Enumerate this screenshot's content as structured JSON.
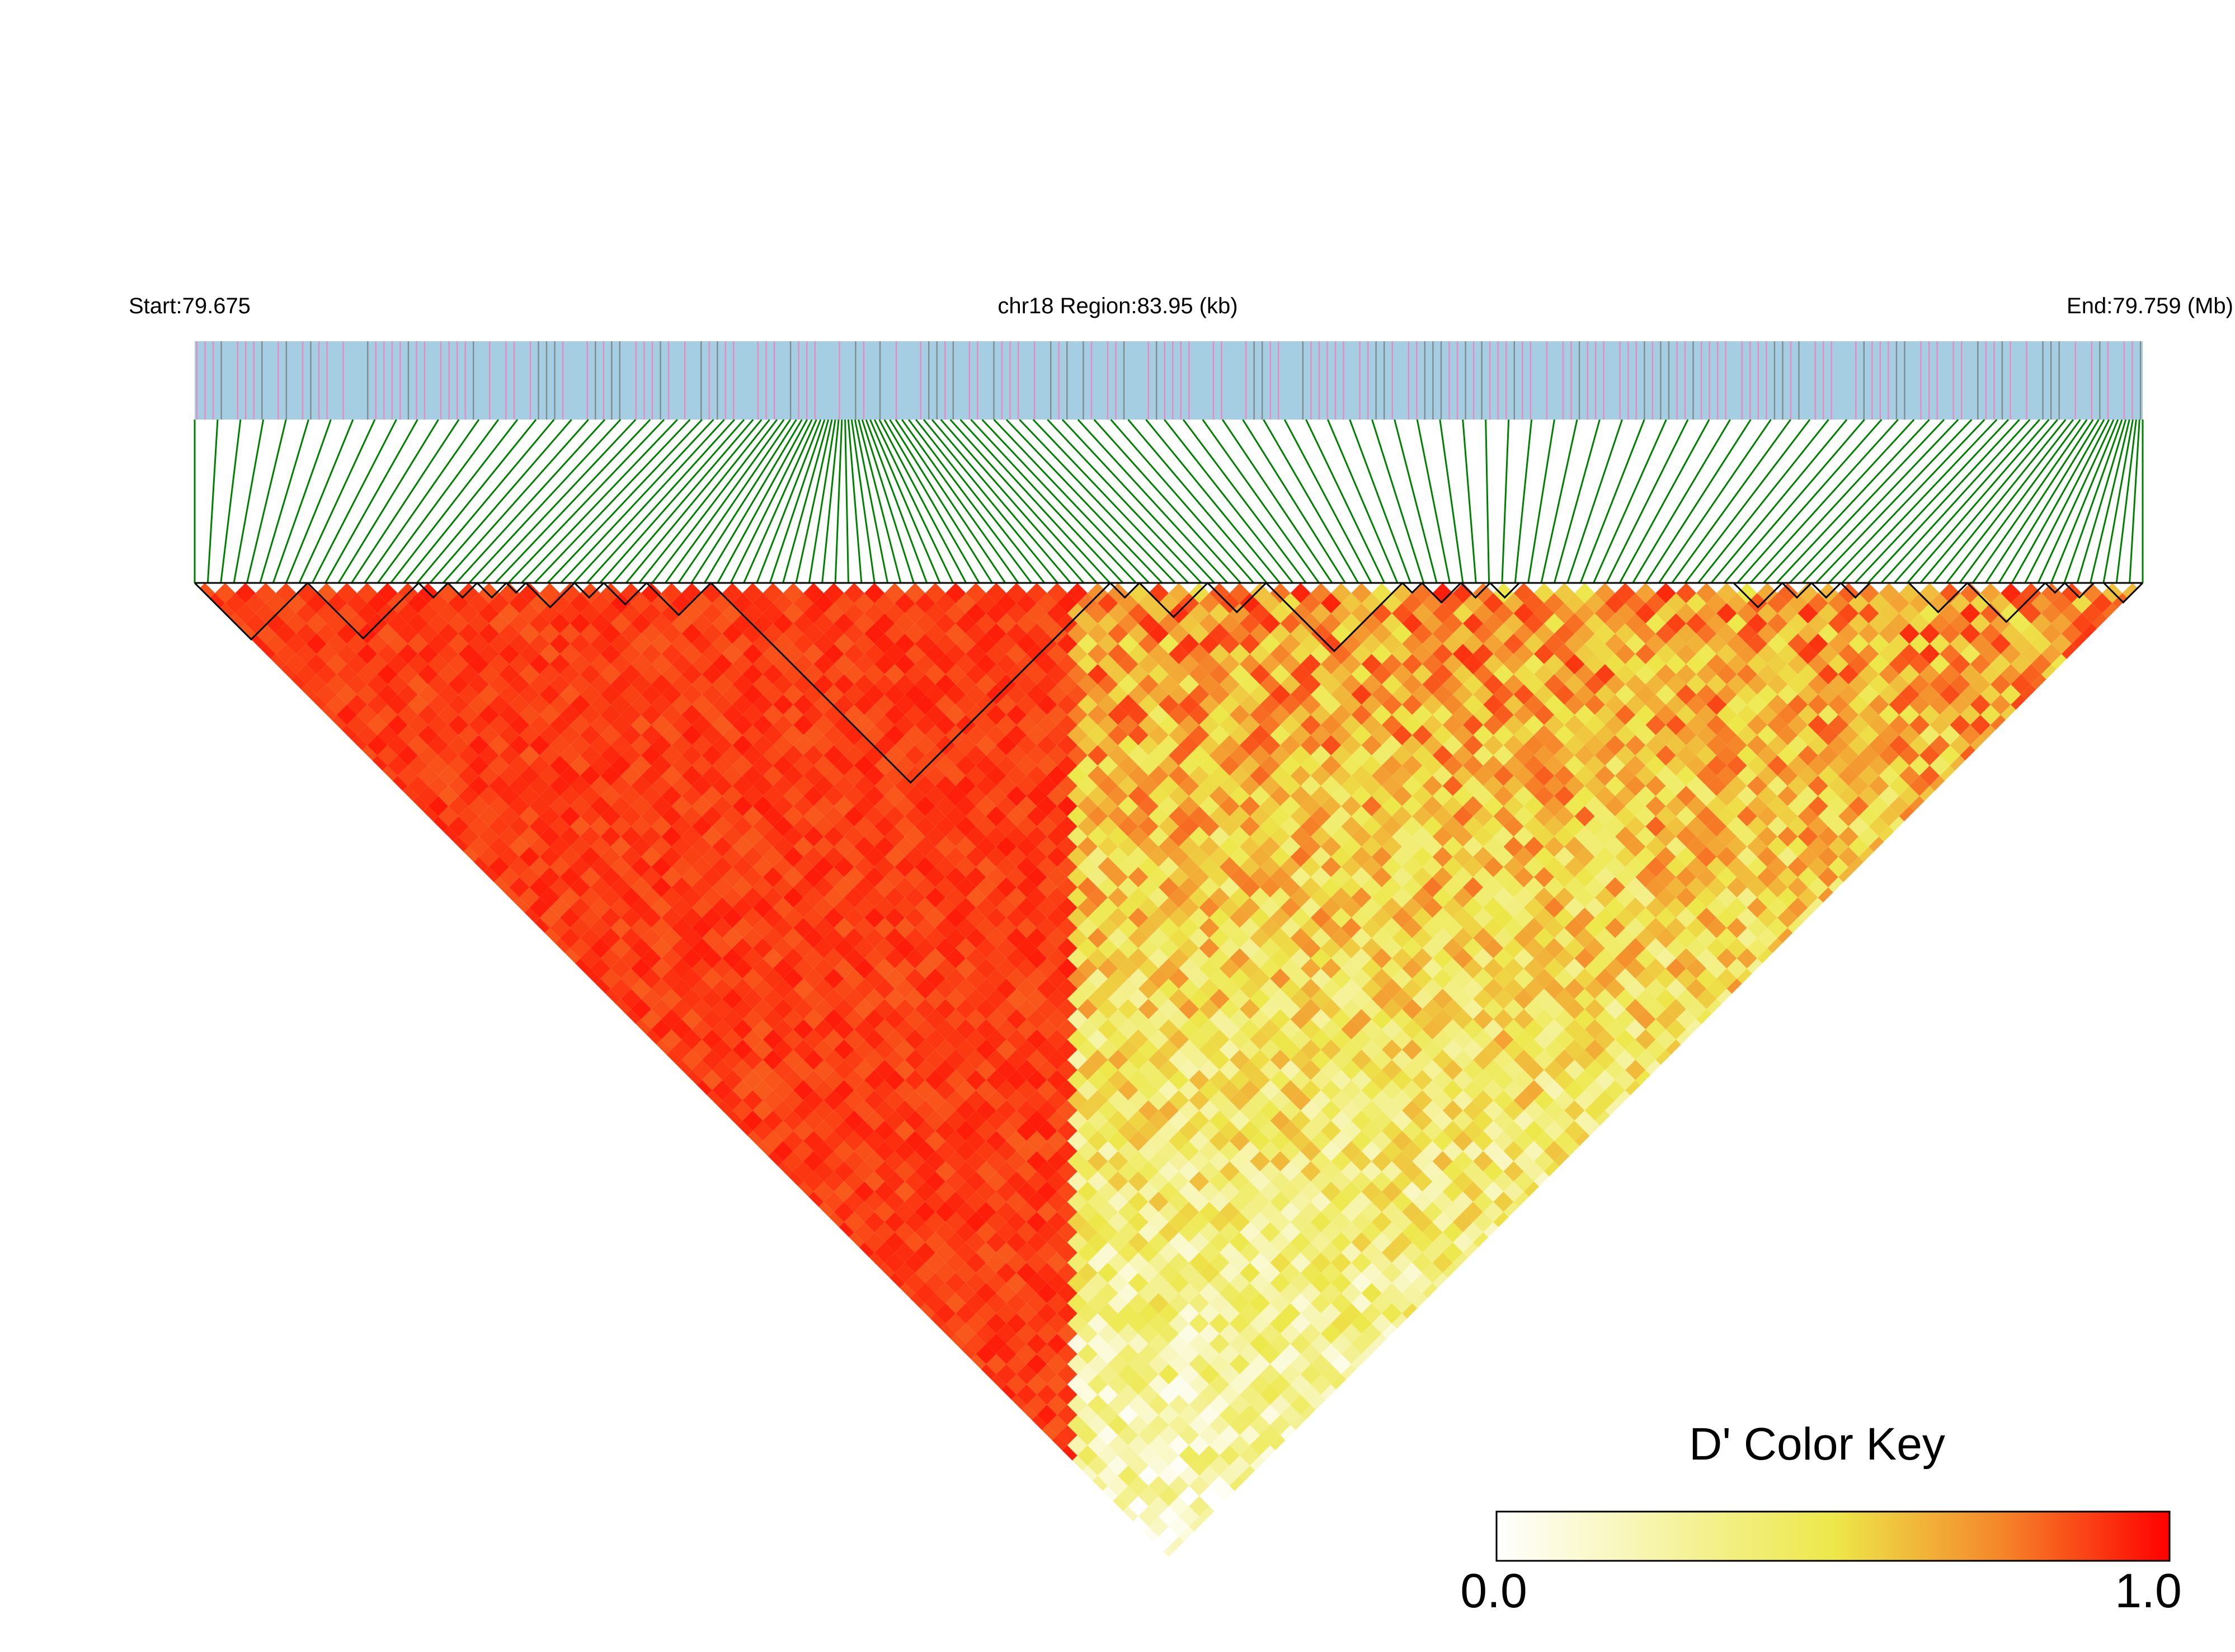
{
  "chart_data": {
    "type": "heatmap",
    "subtype": "linkage-disequilibrium-triangle",
    "title": "",
    "start_label": "Start:79.675",
    "region_label": "chr18 Region:83.95 (kb)",
    "end_label": "End:79.759 (Mb)",
    "chromosome": "chr18",
    "region_start_mb": 79.675,
    "region_end_mb": 79.759,
    "region_size_kb": 83.95,
    "snp_track_colors": {
      "background": "#a6cee3",
      "marker_pink": "#e78ac3",
      "marker_gray": "#7f8c8d"
    },
    "connector_color": "#008000",
    "block_outline_color": "#000000",
    "haplotype_blocks_fraction": [
      [
        0.0,
        0.058
      ],
      [
        0.058,
        0.115
      ],
      [
        0.115,
        0.13
      ],
      [
        0.13,
        0.145
      ],
      [
        0.145,
        0.16
      ],
      [
        0.16,
        0.17
      ],
      [
        0.17,
        0.195
      ],
      [
        0.195,
        0.21
      ],
      [
        0.21,
        0.232
      ],
      [
        0.232,
        0.265
      ],
      [
        0.265,
        0.47
      ],
      [
        0.47,
        0.485
      ],
      [
        0.485,
        0.52
      ],
      [
        0.52,
        0.55
      ],
      [
        0.55,
        0.62
      ],
      [
        0.62,
        0.63
      ],
      [
        0.63,
        0.65
      ],
      [
        0.65,
        0.665
      ],
      [
        0.665,
        0.68
      ],
      [
        0.79,
        0.815
      ],
      [
        0.815,
        0.83
      ],
      [
        0.83,
        0.845
      ],
      [
        0.845,
        0.86
      ],
      [
        0.88,
        0.91
      ],
      [
        0.91,
        0.95
      ],
      [
        0.95,
        0.96
      ],
      [
        0.96,
        0.975
      ],
      [
        0.98,
        1.0
      ]
    ],
    "color_key": {
      "title": "D' Color Key",
      "min": 0.0,
      "max": 1.0,
      "min_label": "0.0",
      "max_label": "1.0",
      "colors": [
        "#ffffff",
        "#ede84a",
        "#f5862a",
        "#ff0000"
      ],
      "stops": [
        0.0,
        0.5,
        0.75,
        1.0
      ]
    }
  }
}
